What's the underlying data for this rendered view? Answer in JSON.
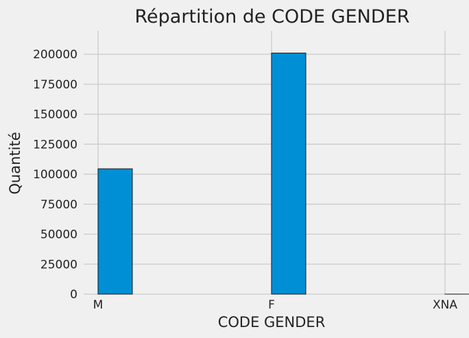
{
  "chart_data": {
    "type": "bar",
    "title": "Répartition de CODE GENDER",
    "xlabel": "CODE GENDER",
    "ylabel": "Quantité",
    "categories": [
      "M",
      "F",
      "XNA"
    ],
    "values": [
      104500,
      201000,
      4
    ],
    "ylim": [
      0,
      210000
    ],
    "yticks": [
      0,
      25000,
      50000,
      75000,
      100000,
      125000,
      150000,
      175000,
      200000
    ],
    "ytick_labels": [
      "0",
      "25000",
      "50000",
      "75000",
      "100000",
      "125000",
      "150000",
      "175000",
      "200000"
    ],
    "grid": true,
    "bar_color": "#008fd5",
    "bar_edge_color": "#1a1a1a",
    "background_color": "#f0f0f0",
    "grid_color": "#cbcbcb"
  }
}
